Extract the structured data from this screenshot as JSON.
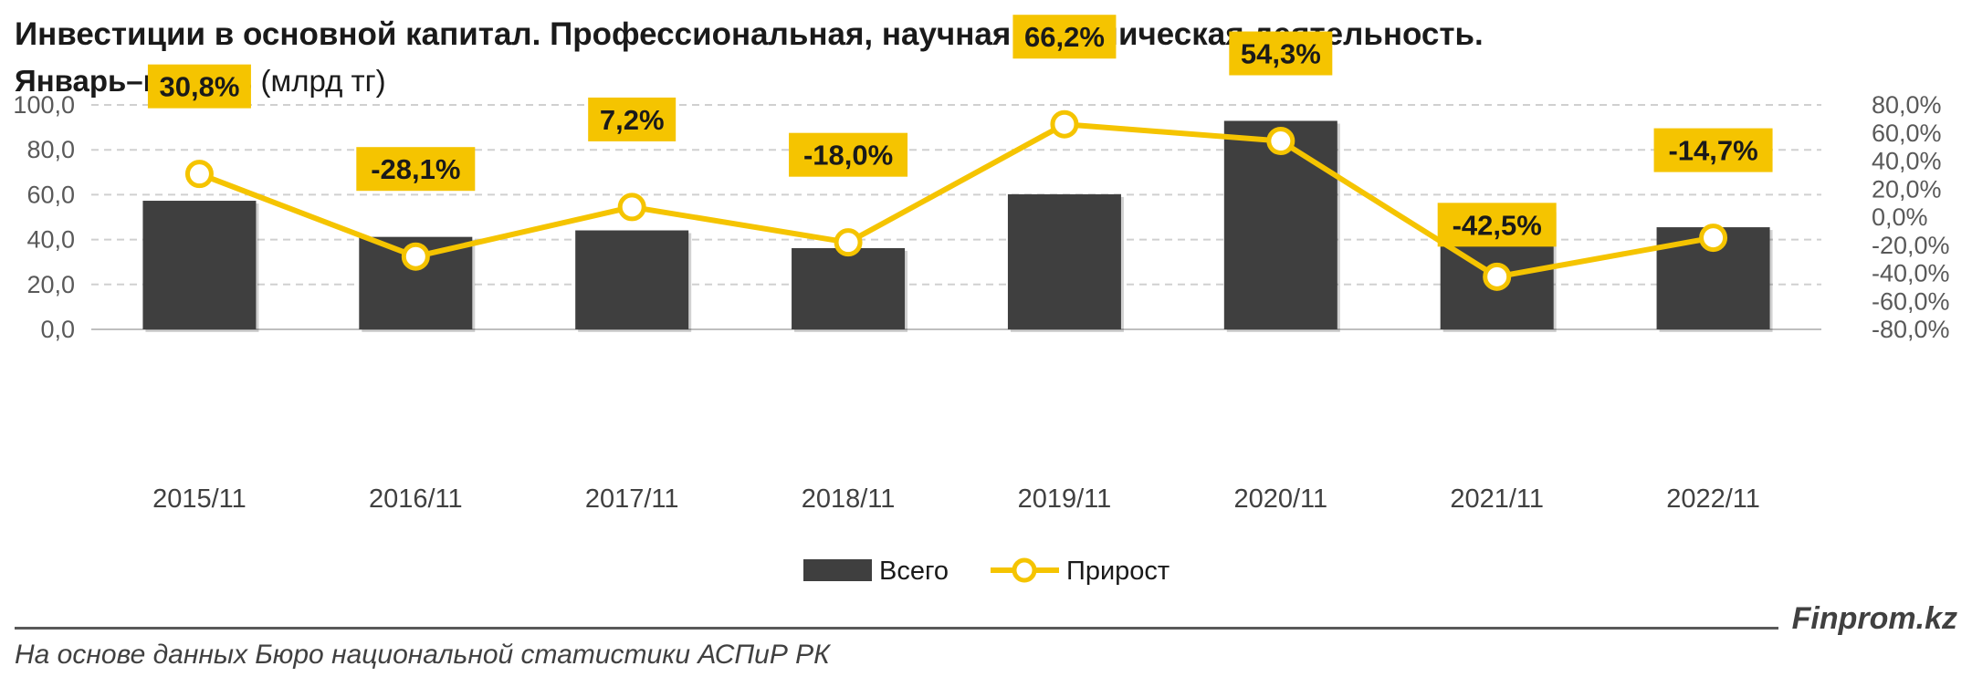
{
  "header": {
    "title": "Инвестиции в основной капитал. Профессиональная, научная и техническая деятельность.",
    "subtitle_bold": "Январь–ноябрь",
    "subtitle_rest": " (млрд тг)"
  },
  "footer": {
    "brand": "Finprom.kz",
    "source": "На основе данных Бюро национальной статистики АСПиР РК"
  },
  "colors": {
    "bar": "#3f3f3f",
    "line": "#f5c400",
    "label_bg": "#f5c400",
    "grid": "#d0d0d0"
  },
  "chart_data": {
    "type": "bar",
    "categories": [
      "2015/11",
      "2016/11",
      "2017/11",
      "2018/11",
      "2019/11",
      "2020/11",
      "2021/11",
      "2022/11"
    ],
    "series": [
      {
        "name": "Всего",
        "type": "bar",
        "axis": "left",
        "values": [
          57.3,
          41.2,
          44.1,
          36.2,
          60.2,
          92.9,
          53.4,
          45.5
        ],
        "labels": [
          "57,3",
          "41,2",
          "44,1",
          "36,2",
          "60,2",
          "92,9",
          "53,4",
          "45,5"
        ]
      },
      {
        "name": "Прирост",
        "type": "line",
        "axis": "right",
        "values": [
          30.8,
          -28.1,
          7.2,
          -18.0,
          66.2,
          54.3,
          -42.5,
          -14.7
        ],
        "labels": [
          "30,8%",
          "-28,1%",
          "7,2%",
          "-18,0%",
          "66,2%",
          "54,3%",
          "-42,5%",
          "-14,7%"
        ]
      }
    ],
    "y_left": {
      "ylim": [
        0,
        100
      ],
      "ticks": [
        0,
        20,
        40,
        60,
        80,
        100
      ],
      "tick_labels": [
        "0,0",
        "20,0",
        "40,0",
        "60,0",
        "80,0",
        "100,0"
      ]
    },
    "y_right": {
      "ylim": [
        -80,
        80
      ],
      "ticks": [
        -80,
        -60,
        -40,
        -20,
        0,
        20,
        40,
        60,
        80
      ],
      "tick_labels": [
        "-80,0%",
        "-60,0%",
        "-40,0%",
        "-20,0%",
        "0,0%",
        "20,0%",
        "40,0%",
        "60,0%",
        "80,0%"
      ]
    },
    "grid": true,
    "legend": "bottom",
    "legend_entries": [
      "Всего",
      "Прирост"
    ]
  }
}
